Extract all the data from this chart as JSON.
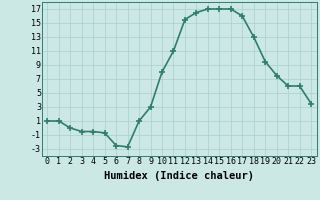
{
  "x": [
    0,
    1,
    2,
    3,
    4,
    5,
    6,
    7,
    8,
    9,
    10,
    11,
    12,
    13,
    14,
    15,
    16,
    17,
    18,
    19,
    20,
    21,
    22,
    23
  ],
  "y": [
    1,
    1,
    0,
    -0.5,
    -0.5,
    -0.7,
    -2.5,
    -2.7,
    1,
    3,
    8,
    11,
    15.5,
    16.5,
    17,
    17,
    17,
    16,
    13,
    9.5,
    7.5,
    6,
    6,
    3.5
  ],
  "line_color": "#2e7d6e",
  "marker_color": "#2e7d6e",
  "bg_color": "#cce8e4",
  "grid_color": "#aacfcb",
  "xlabel": "Humidex (Indice chaleur)",
  "yticks": [
    -3,
    -1,
    1,
    3,
    5,
    7,
    9,
    11,
    13,
    15,
    17
  ],
  "xticks": [
    0,
    1,
    2,
    3,
    4,
    5,
    6,
    7,
    8,
    9,
    10,
    11,
    12,
    13,
    14,
    15,
    16,
    17,
    18,
    19,
    20,
    21,
    22,
    23
  ],
  "xlim": [
    -0.5,
    23.5
  ],
  "ylim": [
    -4,
    18
  ],
  "xlabel_fontsize": 7.5,
  "tick_fontsize": 6,
  "marker_size": 4,
  "line_width": 1.2
}
